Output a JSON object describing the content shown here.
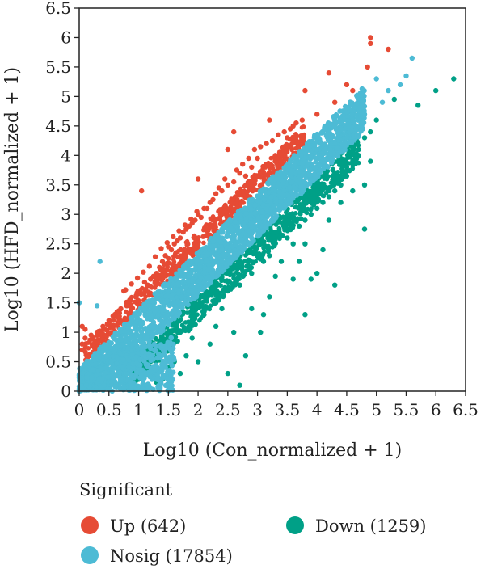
{
  "chart_data": {
    "type": "scatter",
    "xlabel": "Log10 (Con_normalized + 1)",
    "ylabel": "Log10 (HFD_normalized + 1)",
    "xlim": [
      0,
      6.5
    ],
    "ylim": [
      0,
      6.5
    ],
    "x_ticks": [
      "0",
      "0.5",
      "1",
      "1.5",
      "2",
      "2.5",
      "3",
      "3.5",
      "4",
      "4.5",
      "5",
      "5.5",
      "6",
      "6.5"
    ],
    "y_ticks": [
      "0",
      "0.5",
      "1",
      "1.5",
      "2",
      "2.5",
      "3",
      "3.5",
      "4",
      "4.5",
      "5",
      "5.5",
      "6",
      "6.5"
    ],
    "grid": false,
    "legend": {
      "title": "Significant",
      "placement": "bottom",
      "entries": [
        {
          "label": "Up (642)",
          "color": "#e64b35"
        },
        {
          "label": "Down (1259)",
          "color": "#00a087"
        },
        {
          "label": "Nosig (17854)",
          "color": "#4dbbd5"
        }
      ]
    },
    "series": [
      {
        "name": "Up",
        "color": "#e64b35",
        "points": [
          [
            4.9,
            6.0
          ],
          [
            4.9,
            5.9
          ],
          [
            5.2,
            5.8
          ],
          [
            4.85,
            5.5
          ],
          [
            4.2,
            5.4
          ],
          [
            4.5,
            5.2
          ],
          [
            3.8,
            5.1
          ],
          [
            4.6,
            5.1
          ],
          [
            4.3,
            4.9
          ],
          [
            4.0,
            4.7
          ],
          [
            3.2,
            4.6
          ],
          [
            3.6,
            4.5
          ],
          [
            2.6,
            4.4
          ],
          [
            3.5,
            4.3
          ],
          [
            2.5,
            4.1
          ],
          [
            3.3,
            4.0
          ],
          [
            3.0,
            3.95
          ],
          [
            3.4,
            3.9
          ],
          [
            2.9,
            3.8
          ],
          [
            2.0,
            3.6
          ],
          [
            2.7,
            3.7
          ],
          [
            2.8,
            3.65
          ],
          [
            2.6,
            3.55
          ],
          [
            2.5,
            3.5
          ],
          [
            1.05,
            3.4
          ],
          [
            2.3,
            3.35
          ],
          [
            2.4,
            3.4
          ],
          [
            2.2,
            3.2
          ],
          [
            2.25,
            3.25
          ],
          [
            2.1,
            3.1
          ],
          [
            2.15,
            3.1
          ],
          [
            2.0,
            3.0
          ],
          [
            2.05,
            2.95
          ],
          [
            1.9,
            2.85
          ],
          [
            1.95,
            2.9
          ],
          [
            1.8,
            2.75
          ],
          [
            1.85,
            2.8
          ],
          [
            1.7,
            2.6
          ],
          [
            1.75,
            2.7
          ],
          [
            1.6,
            2.5
          ],
          [
            1.65,
            2.55
          ],
          [
            1.5,
            2.45
          ],
          [
            1.55,
            2.4
          ],
          [
            1.45,
            2.3
          ],
          [
            1.4,
            2.2
          ],
          [
            1.5,
            2.25
          ],
          [
            1.35,
            2.1
          ],
          [
            1.3,
            2.0
          ],
          [
            1.25,
            1.95
          ],
          [
            1.2,
            1.9
          ],
          [
            1.1,
            1.85
          ],
          [
            1.15,
            1.8
          ],
          [
            1.0,
            1.7
          ],
          [
            0.95,
            1.6
          ],
          [
            0.75,
            1.7
          ],
          [
            0.85,
            1.55
          ],
          [
            0.8,
            1.45
          ],
          [
            0.7,
            1.4
          ],
          [
            0.6,
            1.3
          ],
          [
            0.5,
            1.2
          ],
          [
            0.65,
            1.25
          ],
          [
            0.4,
            1.1
          ],
          [
            0.3,
            1.0
          ],
          [
            0.2,
            0.95
          ],
          [
            0.1,
            1.05
          ],
          [
            0.05,
            1.1
          ],
          [
            0.1,
            0.9
          ],
          [
            0.05,
            0.8
          ],
          [
            0.05,
            0.7
          ],
          [
            3.05,
            4.15
          ],
          [
            3.15,
            4.2
          ],
          [
            3.25,
            4.25
          ],
          [
            3.35,
            4.35
          ],
          [
            3.45,
            4.4
          ],
          [
            3.55,
            4.45
          ],
          [
            3.65,
            4.55
          ],
          [
            3.75,
            4.6
          ],
          [
            2.95,
            4.1
          ],
          [
            2.85,
            3.95
          ],
          [
            2.75,
            3.85
          ],
          [
            2.65,
            3.75
          ],
          [
            2.45,
            3.6
          ],
          [
            2.35,
            3.45
          ],
          [
            1.98,
            3.05
          ],
          [
            1.88,
            2.92
          ],
          [
            1.78,
            2.82
          ],
          [
            1.68,
            2.72
          ],
          [
            1.58,
            2.62
          ],
          [
            1.48,
            2.52
          ],
          [
            1.38,
            2.42
          ],
          [
            1.28,
            2.28
          ],
          [
            1.18,
            2.12
          ],
          [
            1.08,
            2.02
          ],
          [
            0.98,
            1.92
          ],
          [
            0.88,
            1.82
          ],
          [
            0.78,
            1.72
          ]
        ]
      },
      {
        "name": "Down",
        "color": "#00a087",
        "points": [
          [
            6.3,
            5.3
          ],
          [
            6.0,
            5.1
          ],
          [
            5.7,
            4.85
          ],
          [
            5.3,
            4.95
          ],
          [
            5.0,
            4.6
          ],
          [
            4.8,
            4.3
          ],
          [
            4.6,
            4.2
          ],
          [
            4.9,
            4.4
          ],
          [
            4.7,
            4.0
          ],
          [
            4.9,
            3.9
          ],
          [
            4.8,
            3.5
          ],
          [
            4.6,
            3.4
          ],
          [
            4.8,
            2.75
          ],
          [
            4.4,
            3.2
          ],
          [
            4.2,
            2.9
          ],
          [
            4.1,
            2.4
          ],
          [
            4.0,
            2.0
          ],
          [
            3.8,
            2.5
          ],
          [
            3.7,
            2.2
          ],
          [
            3.9,
            1.9
          ],
          [
            4.3,
            1.8
          ],
          [
            3.8,
            1.3
          ],
          [
            3.6,
            1.9
          ],
          [
            3.3,
            2.7
          ],
          [
            3.0,
            2.6
          ],
          [
            3.2,
            1.6
          ],
          [
            3.1,
            1.3
          ],
          [
            3.05,
            1.0
          ],
          [
            2.8,
            0.6
          ],
          [
            2.9,
            1.4
          ],
          [
            2.6,
            1.0
          ],
          [
            2.4,
            1.4
          ],
          [
            2.3,
            1.1
          ],
          [
            2.2,
            0.8
          ],
          [
            2.1,
            1.3
          ],
          [
            1.9,
            0.9
          ],
          [
            1.8,
            0.6
          ],
          [
            1.7,
            0.3
          ],
          [
            1.6,
            0.5
          ],
          [
            1.5,
            0.4
          ],
          [
            1.4,
            0.2
          ],
          [
            1.3,
            0.15
          ],
          [
            1.1,
            0.1
          ],
          [
            1.0,
            0.2
          ],
          [
            0.9,
            0.1
          ],
          [
            2.0,
            0.5
          ],
          [
            2.5,
            0.3
          ],
          [
            2.7,
            0.1
          ],
          [
            3.3,
            1.95
          ],
          [
            3.4,
            2.2
          ],
          [
            3.6,
            2.5
          ],
          [
            3.8,
            2.9
          ],
          [
            4.0,
            3.1
          ],
          [
            4.2,
            3.3
          ],
          [
            4.4,
            3.5
          ],
          [
            4.5,
            3.65
          ],
          [
            3.2,
            2.3
          ],
          [
            3.1,
            2.2
          ],
          [
            2.9,
            2.0
          ],
          [
            2.7,
            1.8
          ],
          [
            2.5,
            1.7
          ],
          [
            2.3,
            1.5
          ],
          [
            2.1,
            1.4
          ],
          [
            1.9,
            1.2
          ],
          [
            1.7,
            1.0
          ],
          [
            1.5,
            0.8
          ],
          [
            1.3,
            0.6
          ],
          [
            1.2,
            0.4
          ],
          [
            3.5,
            2.6
          ],
          [
            3.7,
            2.8
          ],
          [
            3.9,
            3.0
          ],
          [
            4.1,
            3.2
          ],
          [
            4.3,
            3.4
          ],
          [
            4.5,
            3.8
          ],
          [
            4.6,
            3.9
          ],
          [
            4.7,
            4.1
          ]
        ]
      },
      {
        "name": "Nosig",
        "color": "#4dbbd5",
        "points": [
          [
            5.6,
            5.65
          ],
          [
            5.5,
            5.35
          ],
          [
            5.4,
            5.2
          ],
          [
            5.2,
            5.1
          ],
          [
            5.0,
            5.3
          ],
          [
            5.1,
            4.9
          ],
          [
            4.8,
            4.7
          ],
          [
            4.6,
            4.6
          ],
          [
            4.5,
            4.3
          ],
          [
            4.3,
            4.2
          ],
          [
            4.0,
            4.1
          ],
          [
            3.9,
            4.0
          ],
          [
            0.35,
            2.2
          ],
          [
            0.0,
            1.5
          ],
          [
            0.3,
            1.45
          ],
          [
            0.0,
            0.0
          ],
          [
            0.05,
            0.05
          ]
        ]
      }
    ],
    "nosig_band": {
      "x_range": [
        0.0,
        4.8
      ],
      "half_width": 0.38
    }
  }
}
